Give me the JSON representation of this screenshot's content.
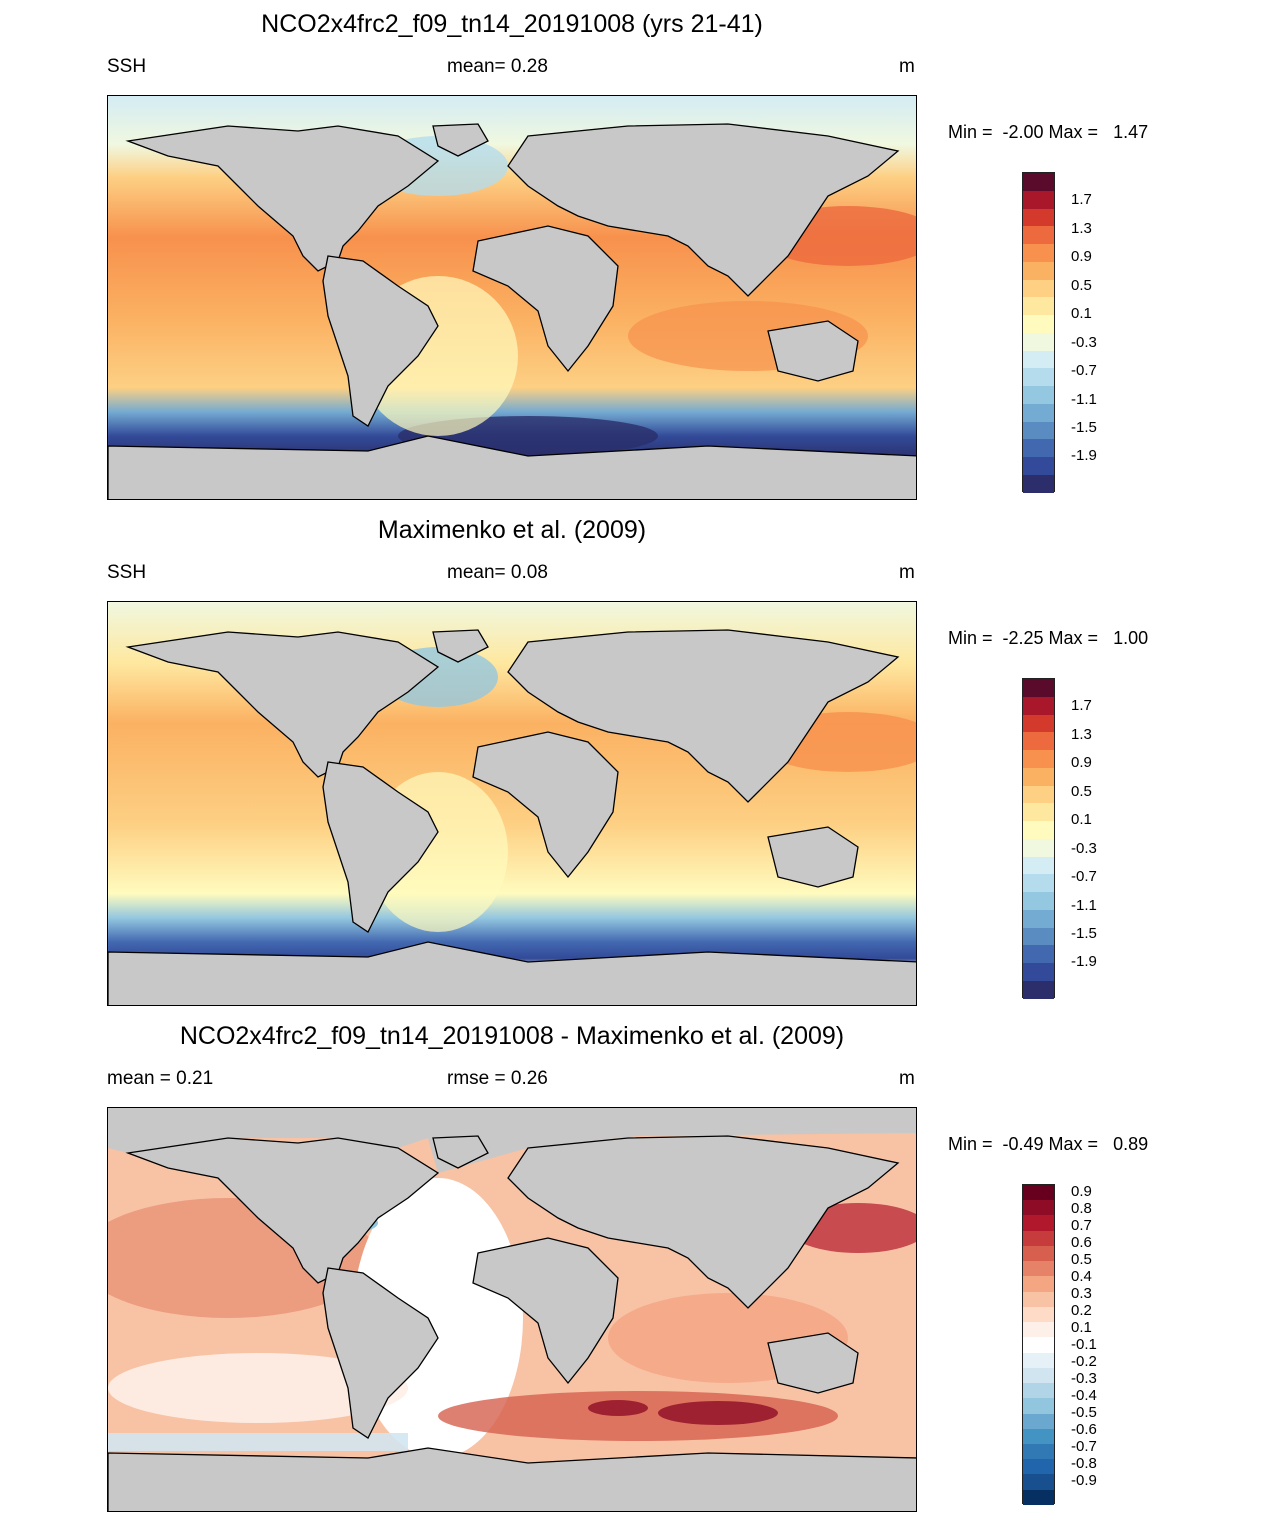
{
  "panels": [
    {
      "id": "model",
      "title": "NCO2x4frc2_f09_tn14_20191008 (yrs 21-41)",
      "left_label": "SSH",
      "center_label": "mean=   0.28",
      "units": "m",
      "minmax": "Min =  -2.00 Max =   1.47",
      "colorbar": {
        "labels": [
          "1.7",
          "1.3",
          "0.9",
          "0.5",
          "0.1",
          "-0.3",
          "-0.7",
          "-1.1",
          "-1.5",
          "-1.9"
        ],
        "colors": [
          "#5a0a2b",
          "#a8182a",
          "#d33a2c",
          "#ec6a3e",
          "#f7914d",
          "#fbb162",
          "#fdd084",
          "#fee8a0",
          "#fffbbe",
          "#f0f8e0",
          "#d4ecf3",
          "#b4dcec",
          "#94c7e0",
          "#74abd2",
          "#5a8cc2",
          "#4268b0",
          "#324a99",
          "#2b2e6a"
        ],
        "scale": "ssh"
      }
    },
    {
      "id": "obs",
      "title": "Maximenko et al. (2009)",
      "left_label": "SSH",
      "center_label": "mean=   0.08",
      "units": "m",
      "minmax": "Min =  -2.25 Max =   1.00",
      "colorbar": {
        "labels": [
          "1.7",
          "1.3",
          "0.9",
          "0.5",
          "0.1",
          "-0.3",
          "-0.7",
          "-1.1",
          "-1.5",
          "-1.9"
        ],
        "colors": [
          "#5a0a2b",
          "#a8182a",
          "#d33a2c",
          "#ec6a3e",
          "#f7914d",
          "#fbb162",
          "#fdd084",
          "#fee8a0",
          "#fffbbe",
          "#f0f8e0",
          "#d4ecf3",
          "#b4dcec",
          "#94c7e0",
          "#74abd2",
          "#5a8cc2",
          "#4268b0",
          "#324a99",
          "#2b2e6a"
        ],
        "scale": "ssh"
      }
    },
    {
      "id": "diff",
      "title": "NCO2x4frc2_f09_tn14_20191008 - Maximenko et al. (2009)",
      "left_label": "mean =   0.21",
      "center_label": "rmse =   0.26",
      "units": "m",
      "minmax": "Min =  -0.49 Max =   0.89",
      "colorbar": {
        "labels": [
          "0.9",
          "0.8",
          "0.7",
          "0.6",
          "0.5",
          "0.4",
          "0.3",
          "0.2",
          "0.1",
          "-0.1",
          "-0.2",
          "-0.3",
          "-0.4",
          "-0.5",
          "-0.6",
          "-0.7",
          "-0.8",
          "-0.9"
        ],
        "colors": [
          "#67001f",
          "#8e0c25",
          "#b2182b",
          "#c63c3c",
          "#d6604d",
          "#e58267",
          "#f4a582",
          "#f8c2a4",
          "#fddbc7",
          "#fdf0e8",
          "#ffffff",
          "#e6f0f7",
          "#d1e5f0",
          "#b2d4e7",
          "#92c5de",
          "#6aa8cf",
          "#4393c3",
          "#3079b5",
          "#2166ac",
          "#18508f",
          "#053061"
        ],
        "scale": "diff"
      }
    }
  ]
}
